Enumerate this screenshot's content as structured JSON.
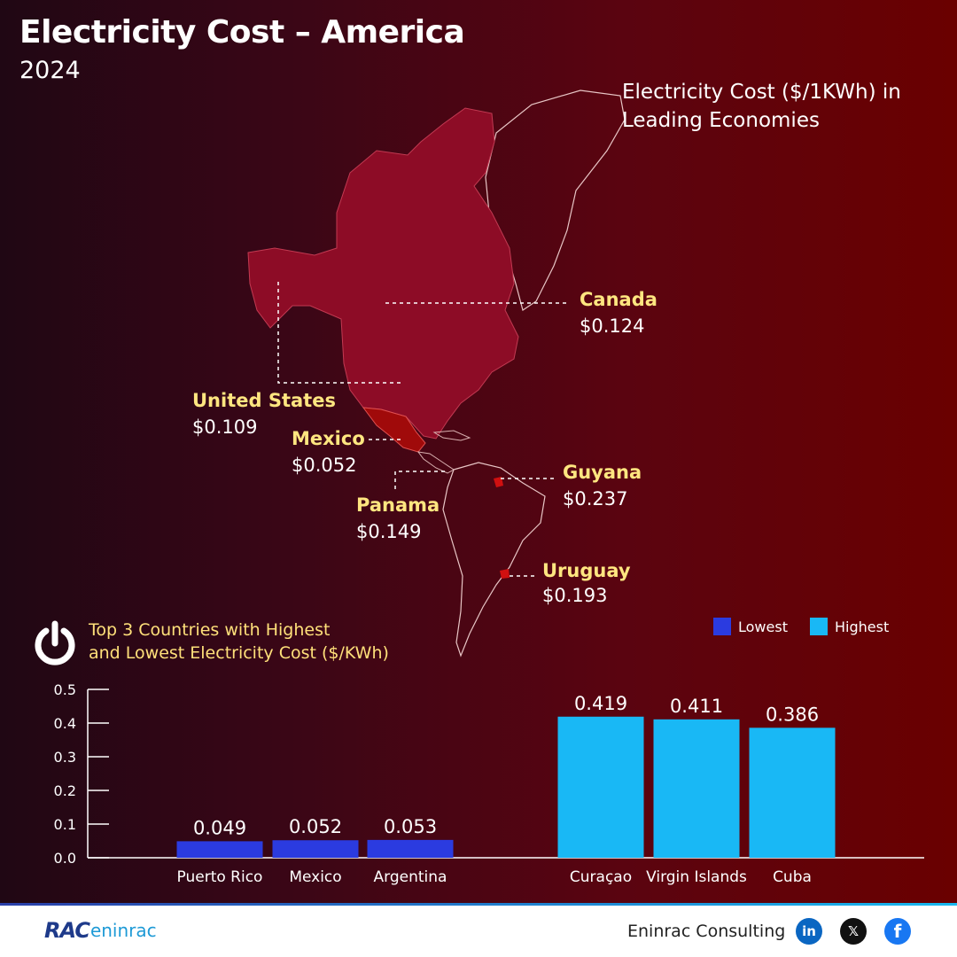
{
  "header": {
    "title": "Electricity Cost – America",
    "year": "2024"
  },
  "map": {
    "caption": "Electricity Cost ($/1KWh) in Leading Economies",
    "countries": [
      {
        "name": "Canada",
        "value": "$0.124"
      },
      {
        "name": "United States",
        "value": "$0.109"
      },
      {
        "name": "Mexico",
        "value": "$0.052"
      },
      {
        "name": "Panama",
        "value": "$0.149"
      },
      {
        "name": "Guyana",
        "value": "$0.237"
      },
      {
        "name": "Uruguay",
        "value": "$0.193"
      }
    ]
  },
  "bars_section": {
    "title_line1": "Top 3 Countries with Highest",
    "title_line2": "and Lowest Electricity Cost ($/KWh)",
    "icon": "power-icon"
  },
  "colors": {
    "lowest": "#2b3be0",
    "highest": "#19b8f5",
    "label_yellow": "#ffe680"
  },
  "chart_data": {
    "type": "bar",
    "categories": [
      "Puerto Rico",
      "Mexico",
      "Argentina",
      "Curaçao",
      "Virgin Islands",
      "Cuba"
    ],
    "series": [
      {
        "name": "Lowest",
        "values": [
          0.049,
          0.052,
          0.053,
          null,
          null,
          null
        ]
      },
      {
        "name": "Highest",
        "values": [
          null,
          null,
          null,
          0.419,
          0.411,
          0.386
        ]
      }
    ],
    "value_labels": [
      "0.049",
      "0.052",
      "0.053",
      "0.419",
      "0.411",
      "0.386"
    ],
    "yticks": [
      "0.0",
      "0.1",
      "0.2",
      "0.3",
      "0.4",
      "0.5"
    ],
    "ylim": [
      0,
      0.5
    ],
    "legend": [
      "Lowest",
      "Highest"
    ],
    "legend_position": "top-right",
    "grid": false
  },
  "footer": {
    "logo_text_1": "RAC",
    "logo_text_2": "eninrac",
    "company": "Eninrac Consulting",
    "social": [
      {
        "icon": "linkedin-icon",
        "glyph": "in"
      },
      {
        "icon": "x-icon",
        "glyph": "𝕏"
      },
      {
        "icon": "facebook-icon",
        "glyph": "f"
      }
    ]
  }
}
